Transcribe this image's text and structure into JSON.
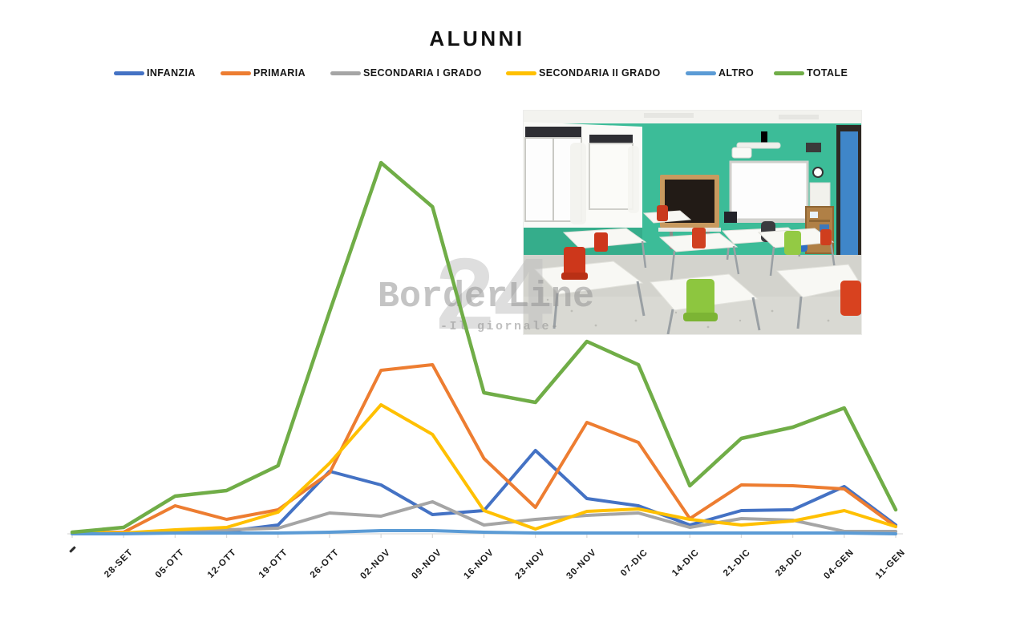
{
  "page": {
    "title": "ALUNNI"
  },
  "watermark": {
    "number": "24",
    "brand": "BorderLine",
    "tagline": "-Il giornale-"
  },
  "photo": {
    "alt": "empty classroom with teal wall, blackboard, interactive whiteboard, white desks and red and green chairs"
  },
  "chart_data": {
    "type": "line",
    "title": "ALUNNI",
    "xlabel": "",
    "ylabel": "",
    "grid": false,
    "legend_position": "top",
    "y_axis_labels_visible": false,
    "ylim": [
      0,
      480
    ],
    "categories": [
      "",
      "28-SET",
      "05-OTT",
      "12-OTT",
      "19-OTT",
      "26-OTT",
      "02-NOV",
      "09-NOV",
      "16-NOV",
      "23-NOV",
      "30-NOV",
      "07-DIC",
      "14-DIC",
      "21-DIC",
      "28-DIC",
      "04-GEN",
      "11-GEN"
    ],
    "series": [
      {
        "name": "INFANZIA",
        "color": "#4472C4",
        "values": [
          1,
          1,
          2,
          3,
          11,
          78,
          61,
          24,
          29,
          104,
          44,
          35,
          11,
          29,
          30,
          59,
          11
        ]
      },
      {
        "name": "PRIMARIA",
        "color": "#ED7D31",
        "values": [
          1,
          2,
          35,
          18,
          30,
          76,
          204,
          211,
          94,
          33,
          139,
          114,
          19,
          61,
          60,
          56,
          9
        ]
      },
      {
        "name": "SECONDARIA I GRADO",
        "color": "#A5A5A5",
        "values": [
          1,
          1,
          2,
          5,
          7,
          26,
          22,
          40,
          11,
          18,
          23,
          26,
          8,
          19,
          17,
          3,
          3
        ]
      },
      {
        "name": "SECONDARIA II GRADO",
        "color": "#FFC000",
        "values": [
          1,
          1,
          5,
          8,
          27,
          88,
          161,
          124,
          29,
          6,
          28,
          31,
          18,
          11,
          16,
          29,
          9
        ]
      },
      {
        "name": "ALTRO",
        "color": "#5B9BD5",
        "values": [
          0,
          0,
          1,
          1,
          1,
          2,
          4,
          4,
          2,
          1,
          1,
          1,
          1,
          1,
          1,
          1,
          0
        ]
      },
      {
        "name": "TOTALE",
        "color": "#70AD47",
        "values": [
          2,
          8,
          47,
          54,
          85,
          277,
          463,
          408,
          176,
          164,
          240,
          211,
          60,
          119,
          133,
          157,
          30
        ]
      }
    ],
    "axis_color": "#d9d9d9"
  }
}
